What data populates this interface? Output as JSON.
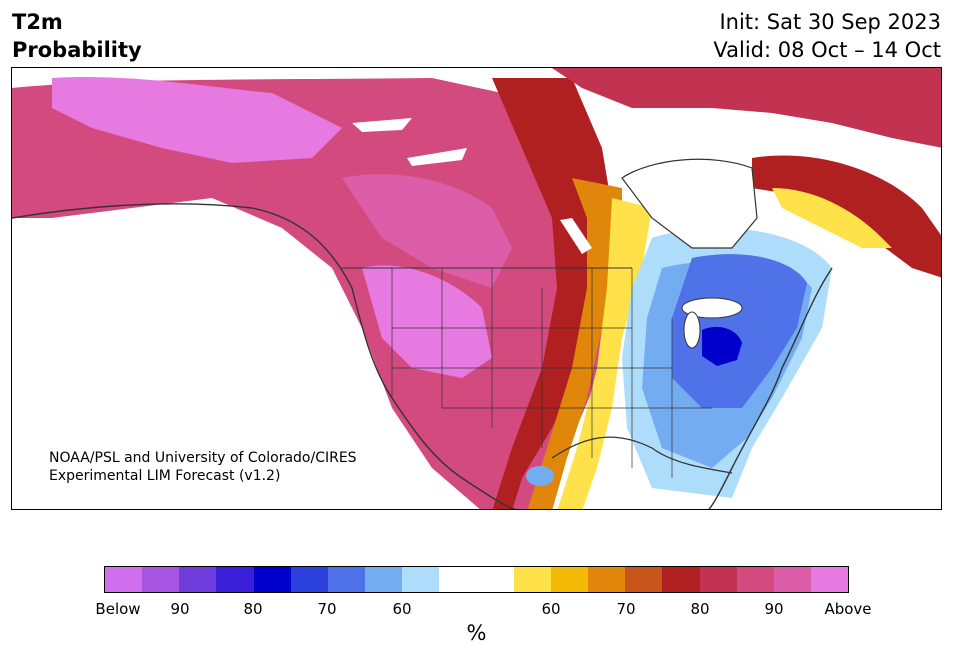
{
  "header": {
    "variable": "T2m",
    "product": "Probability",
    "init": "Init: Sat 30 Sep 2023",
    "valid": "Valid: 08 Oct – 14 Oct"
  },
  "credit": {
    "line1": "NOAA/PSL and University of Colorado/CIRES",
    "line2": "Experimental LIM Forecast (v1.2)"
  },
  "colorbar": {
    "colors": [
      "#d070ee",
      "#a855e4",
      "#6e3ddc",
      "#3a1ed8",
      "#0000cd",
      "#2a3fdc",
      "#4f72e8",
      "#74acf2",
      "#aedcfb",
      "#ffffff",
      "#ffffff",
      "#ffe24a",
      "#f2b905",
      "#e0860a",
      "#c8561a",
      "#b12020",
      "#c23352",
      "#d34a7e",
      "#dc5ea8",
      "#e77ae0"
    ],
    "tick_labels": [
      "Below",
      "90",
      "80",
      "70",
      "60",
      "60",
      "70",
      "80",
      "90",
      "Above"
    ],
    "unit": "%"
  },
  "legend_colors": {
    "above_strong": "#e77ae0",
    "above_mid": "#d34a7e",
    "above_red": "#b12020",
    "above_orange": "#e0860a",
    "above_yellow": "#ffe24a",
    "below_light": "#aedcfb",
    "below_mid": "#4f72e8",
    "below_strong": "#0000cd"
  }
}
